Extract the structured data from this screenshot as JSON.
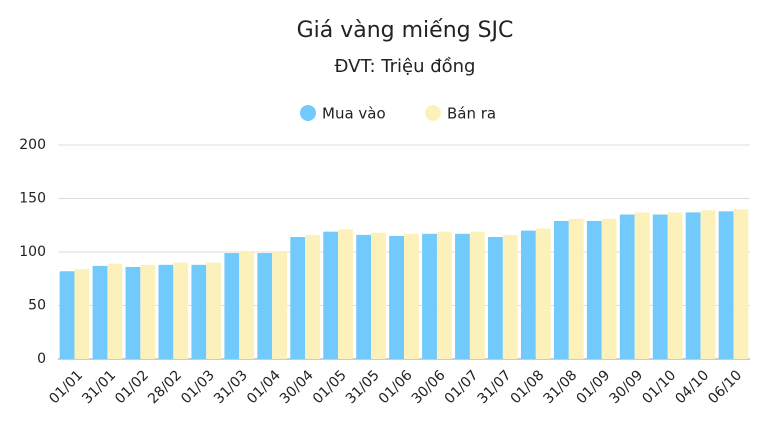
{
  "chart_data": {
    "type": "bar",
    "title": "Giá vàng miếng SJC",
    "subtitle": "ĐVT: Triệu đồng",
    "categories": [
      "01/01",
      "31/01",
      "01/02",
      "28/02",
      "01/03",
      "31/03",
      "01/04",
      "30/04",
      "01/05",
      "31/05",
      "01/06",
      "30/06",
      "01/07",
      "31/07",
      "01/08",
      "31/08",
      "01/09",
      "30/09",
      "01/10",
      "04/10",
      "06/10"
    ],
    "series": [
      {
        "name": "Mua vào",
        "color": "#72c9fb",
        "values": [
          82,
          87,
          86,
          88,
          88,
          99,
          99,
          114,
          119,
          116,
          115,
          117,
          117,
          114,
          120,
          129,
          129,
          135,
          135,
          137,
          138
        ]
      },
      {
        "name": "Bán ra",
        "color": "#fdf1bb",
        "values": [
          84,
          89,
          88,
          90,
          90,
          101,
          101,
          116,
          121,
          118,
          117,
          119,
          119,
          116,
          122,
          131,
          131,
          137,
          137,
          139,
          140
        ]
      }
    ],
    "ylim": [
      0,
      200
    ],
    "yticks": [
      0,
      50,
      100,
      150,
      200
    ],
    "grid": true,
    "legend": "top"
  }
}
